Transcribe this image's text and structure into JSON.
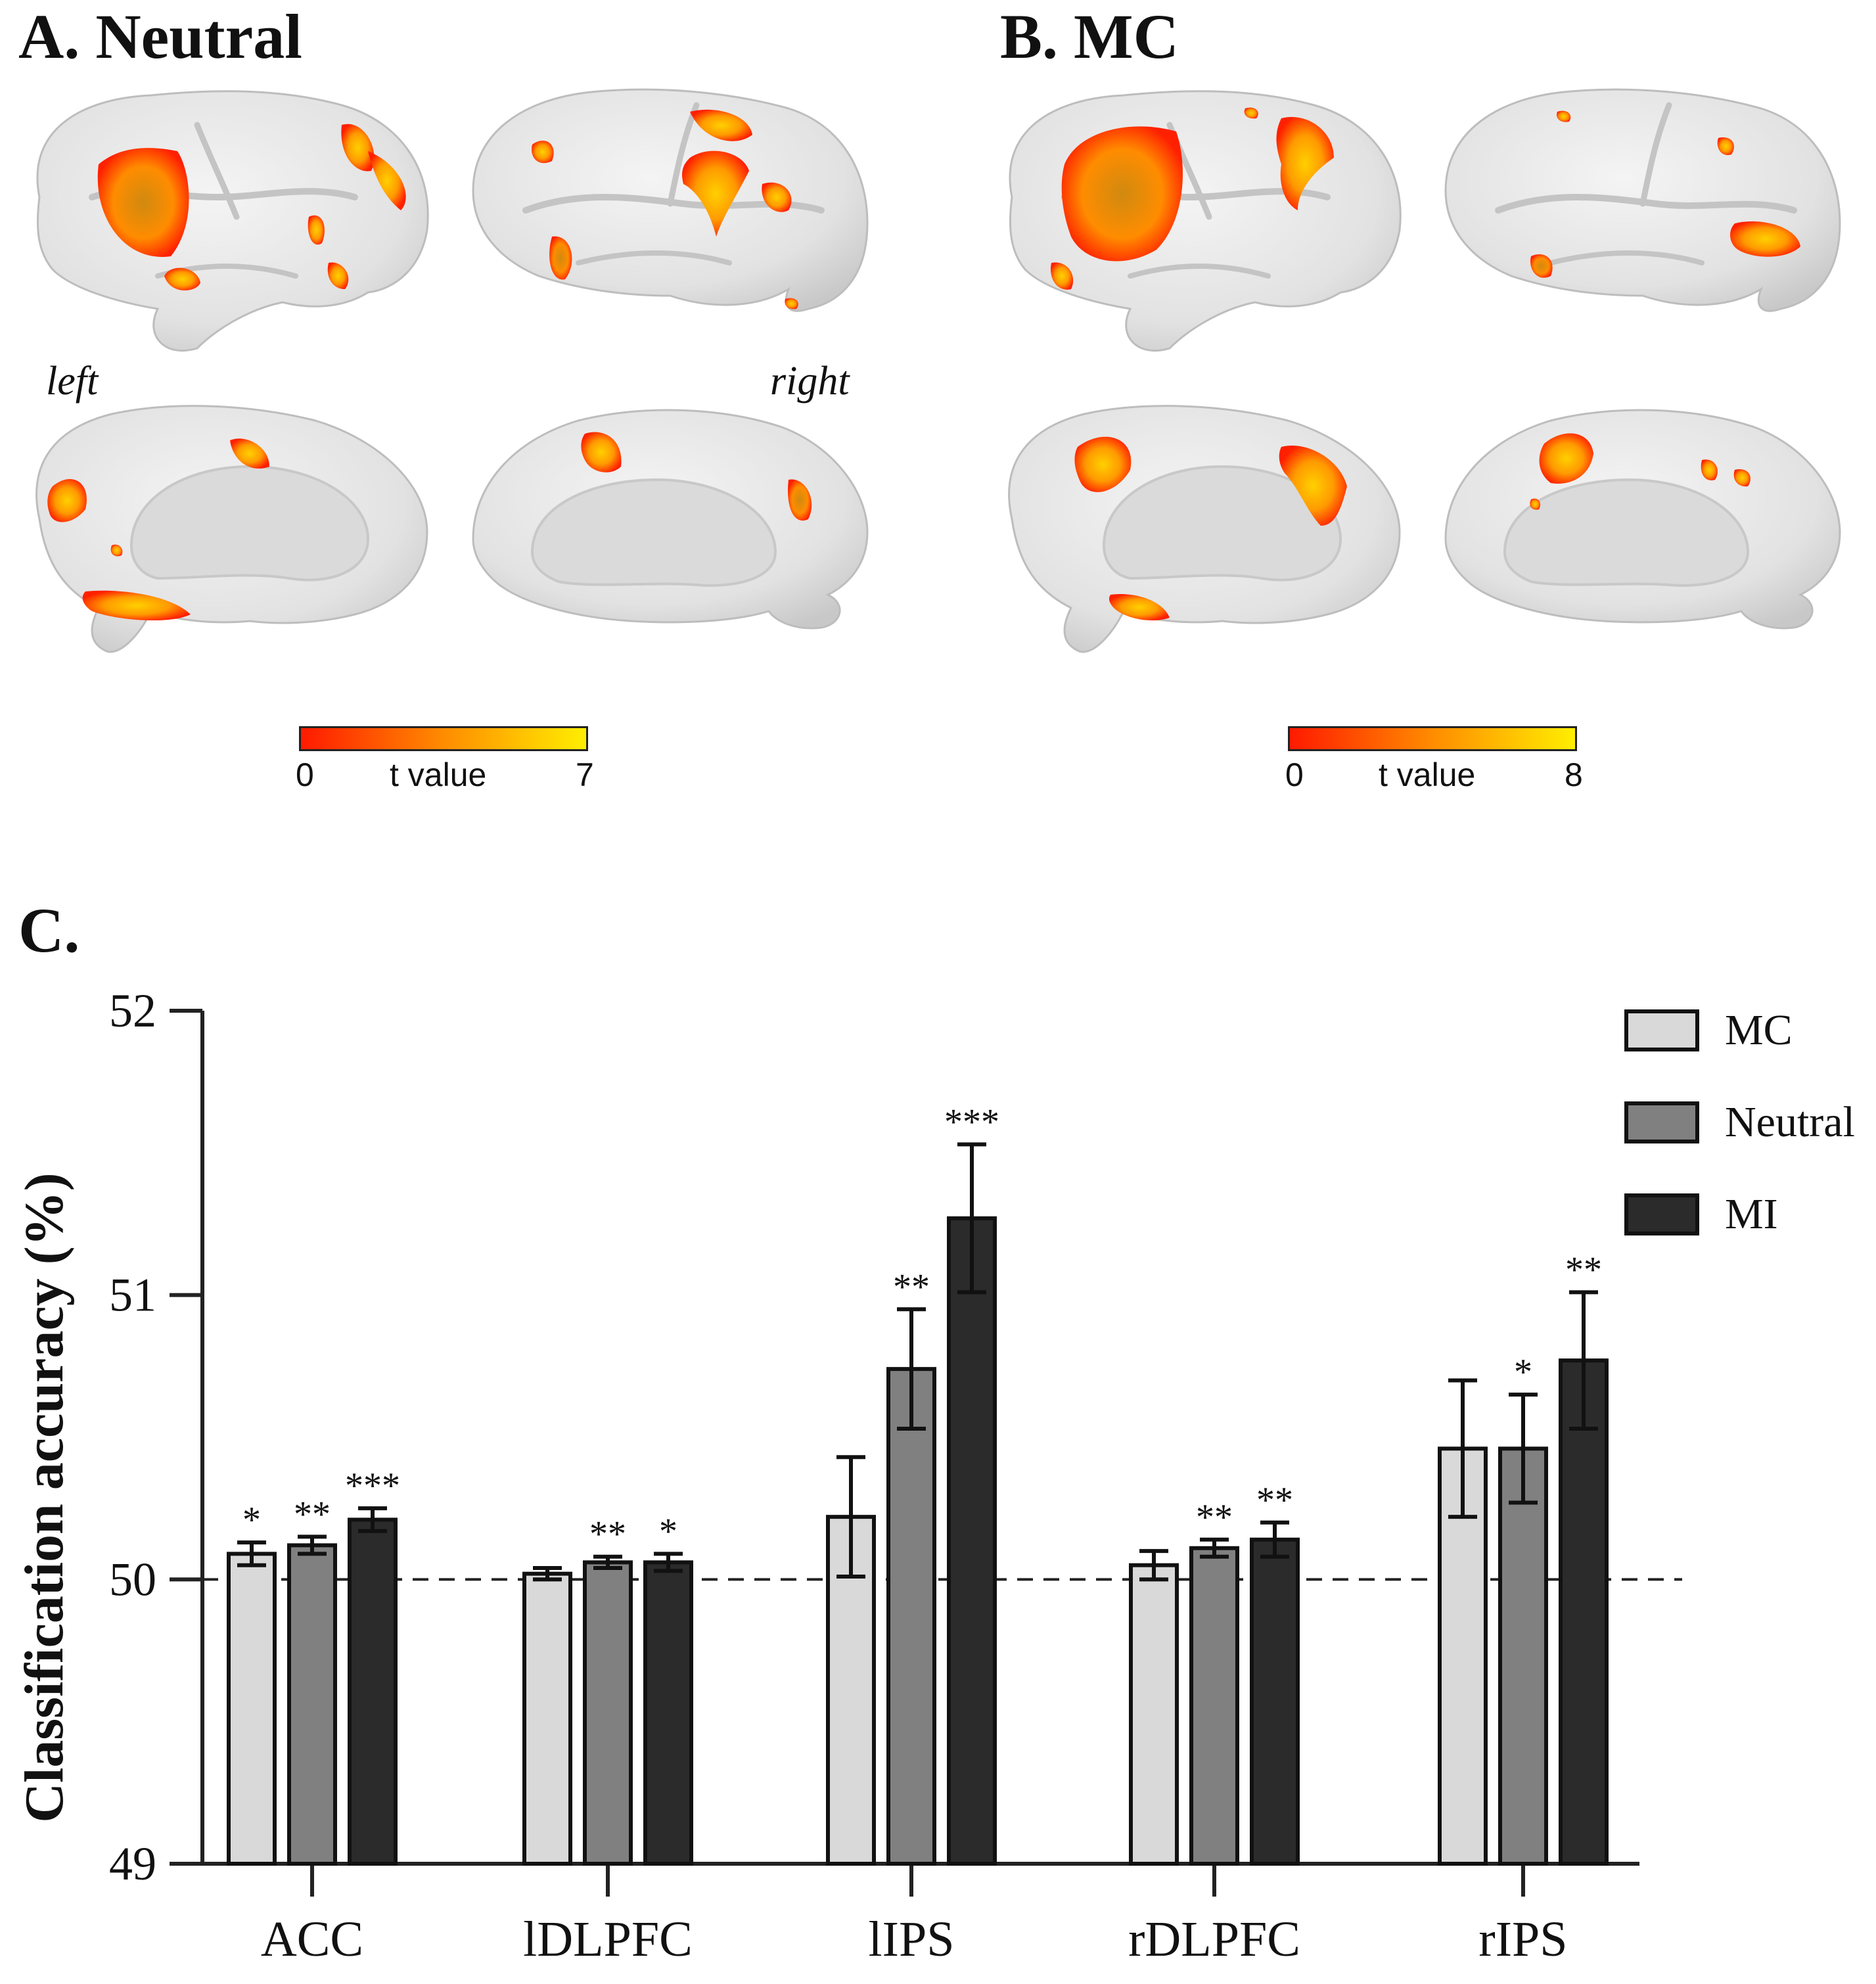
{
  "panel_a": {
    "title": "A. Neutral",
    "left_label": "left",
    "right_label": "right",
    "colorbar": {
      "min": "0",
      "label": "t value",
      "max": "7"
    }
  },
  "panel_b": {
    "title": "B. MC",
    "colorbar": {
      "min": "0",
      "label": "t value",
      "max": "8"
    }
  },
  "panel_c": {
    "title": "C."
  },
  "colors": {
    "heat_low": "#ff1a00",
    "heat_mid": "#ff8c00",
    "heat_high": "#ffee00",
    "brain": "#e6e6e6",
    "MC": "#d9d9d9",
    "Neutral": "#808080",
    "MI": "#2b2b2b"
  },
  "chart_data": {
    "type": "bar",
    "ylabel": "Classification accuracy (%)",
    "xlabel": "",
    "ylim": [
      49,
      52
    ],
    "yticks": [
      49,
      50,
      51,
      52
    ],
    "baseline": 50,
    "categories": [
      "ACC",
      "lDLPFC",
      "lIPS",
      "rDLPFC",
      "rIPS"
    ],
    "legend_position": "top-right",
    "series": [
      {
        "name": "MC",
        "values": [
          50.09,
          50.02,
          50.22,
          50.05,
          50.46
        ],
        "errors": [
          0.04,
          0.02,
          0.21,
          0.05,
          0.24
        ],
        "significance": [
          "*",
          "",
          "",
          "",
          ""
        ]
      },
      {
        "name": "Neutral",
        "values": [
          50.12,
          50.06,
          50.74,
          50.11,
          50.46
        ],
        "errors": [
          0.03,
          0.02,
          0.21,
          0.03,
          0.19
        ],
        "significance": [
          "**",
          "**",
          "**",
          "**",
          "*"
        ]
      },
      {
        "name": "MI",
        "values": [
          50.21,
          50.06,
          51.27,
          50.14,
          50.77
        ],
        "errors": [
          0.04,
          0.03,
          0.26,
          0.06,
          0.24
        ],
        "significance": [
          "***",
          "*",
          "***",
          "**",
          "**"
        ]
      }
    ]
  }
}
